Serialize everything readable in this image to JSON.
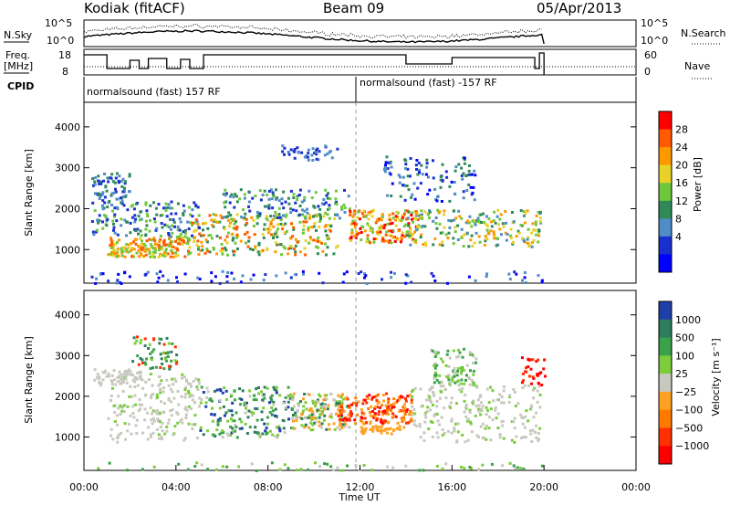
{
  "header": {
    "station": "Kodiak (fitACF)",
    "beam": "Beam 09",
    "date": "05/Apr/2013"
  },
  "top_panels": {
    "nsky_label": "N.Sky",
    "nsky_ticks": [
      "10^5",
      "10^0"
    ],
    "nsearch_label": "N.Search",
    "freq_label_1": "Freq.",
    "freq_label_2": "[MHz]",
    "freq_ticks": [
      "18",
      "8"
    ],
    "nave_label": "Nave",
    "nave_ticks": [
      "60",
      "0"
    ],
    "cpid_label": "CPID",
    "cpid_1": "normalsound (fast) 157 RF",
    "cpid_2": "normalsound (fast) -157 RF"
  },
  "chart_data": [
    {
      "type": "heatmap",
      "name": "power",
      "ylabel": "Slant Range [km]",
      "xlabel": "Time UT",
      "x_ticks": [
        "00:00",
        "04:00",
        "08:00",
        "12:00",
        "16:00",
        "20:00",
        "00:00"
      ],
      "y_ticks": [
        "1000",
        "2000",
        "3000",
        "4000"
      ],
      "ylim": [
        180,
        4600
      ],
      "colorbar_label": "Power [dB]",
      "colorbar_ticks": [
        "28",
        "24",
        "20",
        "16",
        "12",
        "8",
        "4"
      ],
      "colorbar_colors": [
        "#ff0000",
        "#ff5a00",
        "#ff9900",
        "#e8d22a",
        "#6ec83c",
        "#2f8a58",
        "#4f8cc8",
        "#1a2fd0",
        "#0000ff"
      ]
    },
    {
      "type": "heatmap",
      "name": "velocity",
      "ylabel": "Slant Range [km]",
      "xlabel": "Time UT",
      "x_ticks": [
        "00:00",
        "04:00",
        "08:00",
        "12:00",
        "16:00",
        "20:00",
        "00:00"
      ],
      "y_ticks": [
        "1000",
        "2000",
        "3000",
        "4000"
      ],
      "ylim": [
        180,
        4600
      ],
      "colorbar_label": "Velocity [m s⁻¹]",
      "colorbar_ticks": [
        "1000",
        "500",
        "100",
        "25",
        "−25",
        "−100",
        "−500",
        "−1000"
      ],
      "colorbar_colors": [
        "#1f3fa8",
        "#2e7d5e",
        "#3aa24a",
        "#7ccd3c",
        "#c8c8c0",
        "#ffa020",
        "#ff7a00",
        "#ff3000",
        "#ff0000"
      ]
    }
  ],
  "footer": {
    "xlabel": "Time UT"
  }
}
